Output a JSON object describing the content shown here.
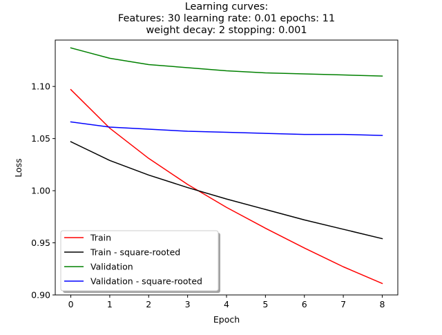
{
  "chart_data": {
    "type": "line",
    "title": [
      "Learning curves:",
      "Features: 30 learning rate: 0.01 epochs: 11",
      "weight decay: 2 stopping: 0.001"
    ],
    "xlabel": "Epoch",
    "ylabel": "Loss",
    "xlim": [
      -0.4,
      8.4
    ],
    "ylim": [
      0.9,
      1.1445
    ],
    "xticks": [
      0,
      1,
      2,
      3,
      4,
      5,
      6,
      7,
      8
    ],
    "xtick_labels": [
      "0",
      "1",
      "2",
      "3",
      "4",
      "5",
      "6",
      "7",
      "8"
    ],
    "yticks": [
      0.9,
      0.95,
      1.0,
      1.05,
      1.1
    ],
    "ytick_labels": [
      "0.90",
      "0.95",
      "1.00",
      "1.05",
      "1.10"
    ],
    "grid": false,
    "legend_position": "lower-left",
    "x": [
      0,
      1,
      2,
      3,
      4,
      5,
      6,
      7,
      8
    ],
    "series": [
      {
        "name": "Train",
        "color": "#ff0000",
        "values": [
          1.097,
          1.06,
          1.031,
          1.006,
          0.984,
          0.964,
          0.945,
          0.927,
          0.911
        ]
      },
      {
        "name": "Train - square-rooted",
        "color": "#000000",
        "values": [
          1.047,
          1.029,
          1.015,
          1.003,
          0.992,
          0.982,
          0.972,
          0.963,
          0.954
        ]
      },
      {
        "name": "Validation",
        "color": "#008000",
        "values": [
          1.137,
          1.127,
          1.121,
          1.118,
          1.115,
          1.113,
          1.112,
          1.111,
          1.11
        ]
      },
      {
        "name": "Validation - square-rooted",
        "color": "#0000ff",
        "values": [
          1.066,
          1.061,
          1.059,
          1.057,
          1.056,
          1.055,
          1.054,
          1.054,
          1.053
        ]
      }
    ]
  }
}
